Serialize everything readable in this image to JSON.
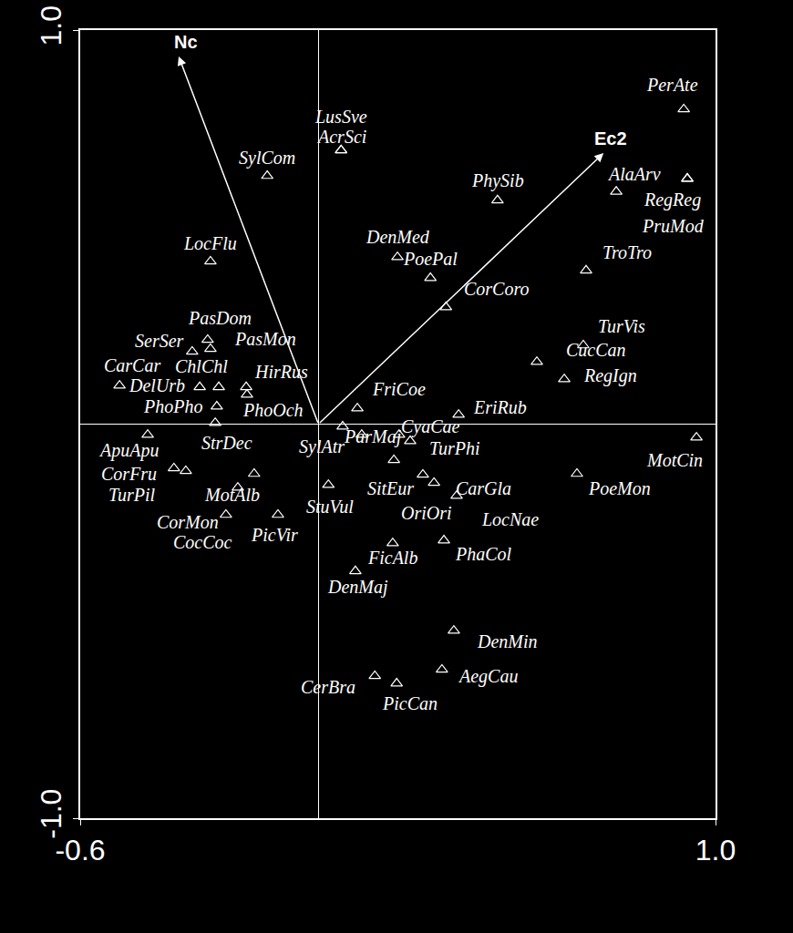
{
  "chart_data": {
    "type": "biplot",
    "marker": "triangle-open",
    "color": "#ffffff",
    "labels": [
      "PerAte",
      "LusSve",
      "AcrSci",
      "SylCom",
      "AlaArv",
      "RegReg",
      "PruMod",
      "PhySib",
      "TroTro",
      "LocFlu",
      "DenMed",
      "PoePal",
      "CorCoro",
      "PasDom",
      "PasMon",
      "SerSer",
      "CarCar",
      "DelUrb",
      "ChlChl",
      "PhoPho",
      "StrDec",
      "HirRus",
      "PhoOch",
      "TurVis",
      "CucCan",
      "RegIgn",
      "FriCoe",
      "EriRub",
      "MotCin",
      "ApuApu",
      "SylAtr",
      "ParMaj",
      "CyaCae",
      "TurPhi",
      "SitEur",
      "OriOri",
      "CarGla",
      "LocNae",
      "PoeMon",
      "CorFru",
      "TurPil",
      "MotAlb",
      "CorMon",
      "CocCoc",
      "PicVir",
      "StuVul",
      "FicAlb",
      "PhaCol",
      "DenMaj",
      "DenMin",
      "AegCau",
      "CerBra",
      "PicCan"
    ],
    "x": [
      0.92,
      0.057,
      0.057,
      -0.129,
      0.75,
      0.929,
      0.929,
      0.451,
      0.674,
      -0.272,
      0.199,
      0.282,
      0.321,
      -0.279,
      -0.272,
      -0.318,
      -0.501,
      -0.299,
      -0.251,
      -0.256,
      -0.26,
      -0.182,
      -0.18,
      0.667,
      0.55,
      0.619,
      0.098,
      0.353,
      0.952,
      -0.43,
      0.061,
      0.109,
      0.203,
      0.231,
      0.19,
      0.263,
      0.291,
      0.348,
      0.651,
      -0.364,
      -0.334,
      -0.162,
      -0.203,
      -0.233,
      -0.102,
      0.025,
      0.187,
      0.316,
      0.093,
      0.341,
      0.311,
      0.142,
      0.197
    ],
    "y": [
      0.799,
      0.695,
      0.695,
      0.63,
      0.59,
      0.623,
      0.623,
      0.568,
      0.39,
      0.413,
      0.424,
      0.371,
      0.297,
      0.214,
      0.191,
      0.184,
      0.098,
      0.094,
      0.094,
      0.045,
      0.003,
      0.094,
      0.075,
      0.2,
      0.158,
      0.114,
      0.04,
      0.024,
      -0.034,
      -0.027,
      -0.006,
      -0.027,
      -0.027,
      -0.043,
      -0.091,
      -0.128,
      -0.149,
      -0.182,
      -0.126,
      -0.112,
      -0.119,
      -0.126,
      -0.161,
      -0.23,
      -0.23,
      -0.154,
      -0.302,
      -0.295,
      -0.373,
      -0.524,
      -0.623,
      -0.639,
      -0.658
    ],
    "arrows": [
      {
        "label": "Nc",
        "x": -0.352,
        "y": 0.933
      },
      {
        "label": "Ec2",
        "x": 0.718,
        "y": 0.688
      }
    ],
    "xlim": [
      -0.6,
      1.0
    ],
    "ylim": [
      -1.0,
      1.0
    ],
    "xticks": [
      {
        "value": -0.6,
        "label": "-0.6"
      },
      {
        "value": 1.0,
        "label": "1.0"
      }
    ],
    "yticks": [
      {
        "value": -1.0,
        "label": "-1.0"
      },
      {
        "value": 1.0,
        "label": "1.0"
      }
    ],
    "grid": false
  }
}
